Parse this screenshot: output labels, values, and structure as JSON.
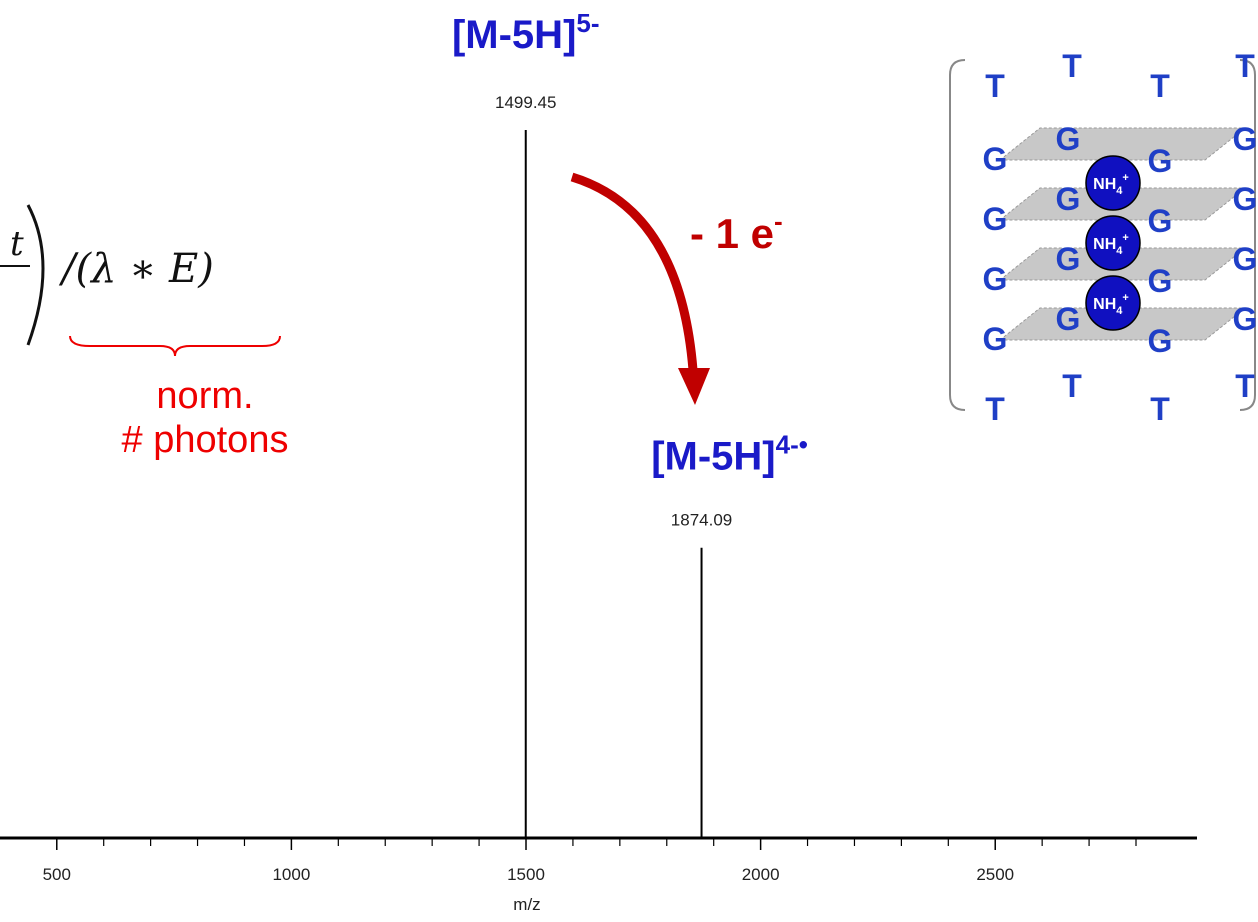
{
  "chart_data": {
    "type": "spectrum",
    "x": [
      1499.45,
      1874.09
    ],
    "values": [
      100,
      41
    ],
    "color": "#000000",
    "xlim": [
      379,
      2930
    ],
    "xticks": [
      500,
      1000,
      1500,
      2000,
      2500
    ],
    "xminorticks": [
      600,
      700,
      800,
      900,
      1100,
      1200,
      1300,
      1400,
      1600,
      1700,
      1800,
      1900,
      2100,
      2200,
      2300,
      2400,
      2600,
      2700,
      2800
    ],
    "xlabel": "m/z",
    "peak_ions": [
      {
        "ion": "[M-5H]",
        "charge": "5-"
      },
      {
        "ion": "[M-5H]",
        "charge": "4-•"
      }
    ],
    "electron_loss": {
      "text": "- 1 e",
      "sup": "-"
    },
    "formula": {
      "numerator": "t",
      "term": "/(λ ∗ E)",
      "note": [
        "norm.",
        "# photons"
      ]
    }
  },
  "quadruplex": {
    "t_labels": [
      "T",
      "T",
      "T",
      "T",
      "T",
      "T",
      "T",
      "T"
    ],
    "g_labels": [
      "G",
      "G",
      "G",
      "G",
      "G",
      "G",
      "G",
      "G",
      "G",
      "G",
      "G",
      "G",
      "G",
      "G",
      "G",
      "G"
    ],
    "ions": [
      {
        "base": "NH",
        "sub": "4",
        "sup": "+"
      },
      {
        "base": "NH",
        "sub": "4",
        "sup": "+"
      },
      {
        "base": "NH",
        "sub": "4",
        "sup": "+"
      }
    ]
  }
}
